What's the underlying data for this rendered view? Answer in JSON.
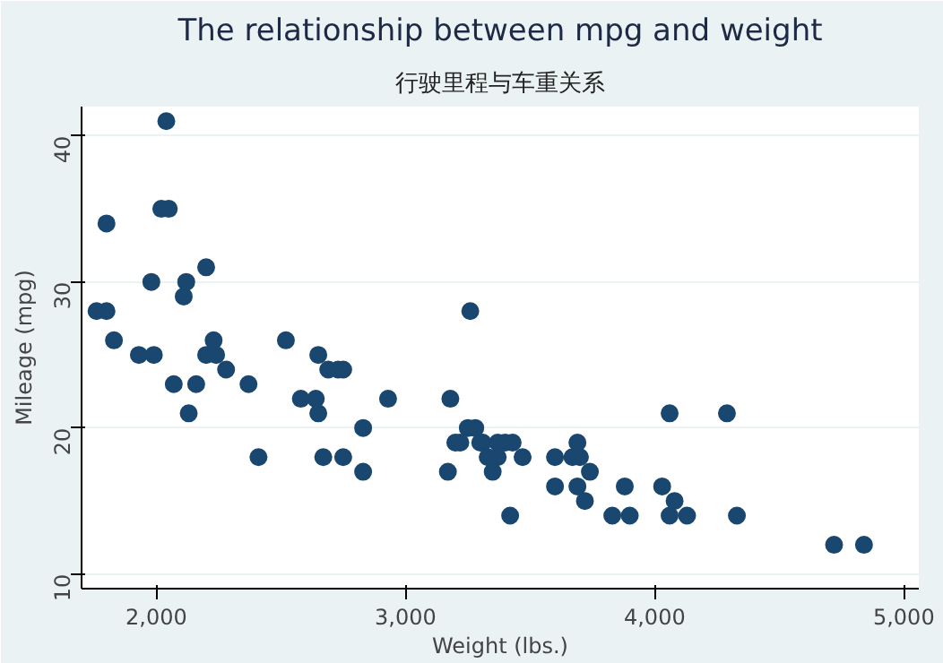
{
  "chart_data": {
    "type": "scatter",
    "title": "The relationship between mpg and weight",
    "subtitle": "行驶里程与车重关系",
    "xlabel": "Weight (lbs.)",
    "ylabel": "Mileage (mpg)",
    "x": [
      2930,
      3350,
      2640,
      3250,
      4080,
      3670,
      2230,
      3280,
      3880,
      3400,
      4330,
      3900,
      4290,
      2110,
      3690,
      3180,
      3220,
      2750,
      3430,
      2120,
      3600,
      3600,
      3740,
      1800,
      2650,
      4840,
      4720,
      3830,
      2580,
      4060,
      3720,
      3370,
      4130,
      2830,
      4060,
      3310,
      3300,
      3690,
      3370,
      2730,
      4030,
      3260,
      1800,
      2200,
      2520,
      3330,
      3700,
      3470,
      3200,
      2690,
      2830,
      2070,
      2650,
      2370,
      2020,
      2280,
      2750,
      2130,
      2240,
      1760,
      1980,
      3420,
      1830,
      2050,
      2410,
      2200,
      2670,
      2160,
      2040,
      1930,
      1990,
      3170
    ],
    "series": [
      {
        "color": "#1a476f",
        "values": [
          22,
          17,
          22,
          20,
          15,
          18,
          26,
          20,
          16,
          19,
          14,
          14,
          21,
          29,
          16,
          22,
          19,
          24,
          19,
          30,
          18,
          16,
          17,
          28,
          21,
          12,
          12,
          14,
          22,
          14,
          15,
          18,
          14,
          20,
          21,
          19,
          19,
          19,
          19,
          24,
          16,
          28,
          34,
          25,
          26,
          18,
          18,
          18,
          19,
          24,
          17,
          23,
          25,
          23,
          35,
          24,
          18,
          21,
          25,
          28,
          30,
          14,
          26,
          35,
          18,
          31,
          18,
          23,
          41,
          25,
          25,
          17
        ]
      }
    ],
    "xlim": [
      1700,
      5060
    ],
    "ylim": [
      9,
      42
    ],
    "xticks": [
      {
        "value": 2000,
        "label": "2,000"
      },
      {
        "value": 3000,
        "label": "3,000"
      },
      {
        "value": 4000,
        "label": "4,000"
      },
      {
        "value": 5000,
        "label": "5,000"
      }
    ],
    "yticks": [
      10,
      20,
      30,
      40
    ],
    "grid": "y",
    "marker": "circle"
  }
}
